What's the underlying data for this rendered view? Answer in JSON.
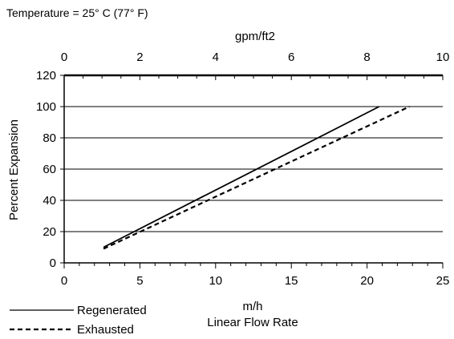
{
  "note": "Temperature = 25° C (77° F)",
  "chart_data": {
    "type": "line",
    "ylabel": "Percent Expansion",
    "xlabel_unit": "m/h",
    "xlabel": "Linear Flow Rate",
    "x2label": "gpm/ft2",
    "xlim": [
      0,
      25
    ],
    "ylim": [
      0,
      120
    ],
    "x2lim": [
      0,
      10
    ],
    "x_ticks": [
      0,
      5,
      10,
      15,
      20,
      25
    ],
    "y_ticks": [
      0,
      20,
      40,
      60,
      80,
      100,
      120
    ],
    "x2_ticks": [
      0,
      2,
      4,
      6,
      8,
      10
    ],
    "grid": "horizontal",
    "legend_position": "bottom-left",
    "series": [
      {
        "name": "Regenerated",
        "style": "solid",
        "x": [
          2.6,
          20.8
        ],
        "y": [
          10,
          100
        ]
      },
      {
        "name": "Exhausted",
        "style": "dashed",
        "x": [
          2.6,
          22.8
        ],
        "y": [
          9,
          100
        ]
      }
    ]
  }
}
